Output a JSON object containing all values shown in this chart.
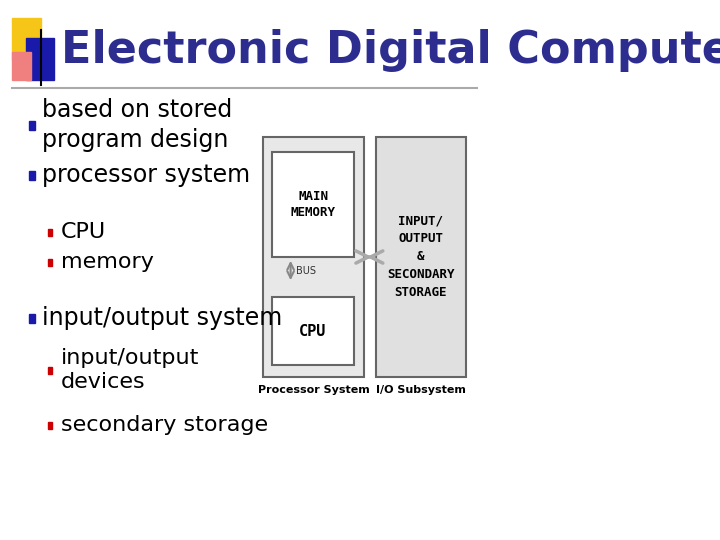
{
  "title": "Electronic Digital Computers",
  "title_color": "#2d2d8f",
  "title_fontsize": 32,
  "bg_color": "#ffffff",
  "bullet_color": "#1a1aaa",
  "subbullet_color": "#cc0000",
  "text_color": "#000000",
  "bullet_items": [
    {
      "level": 1,
      "text": "based on stored\nprogram design"
    },
    {
      "level": 1,
      "text": "processor system"
    },
    {
      "level": 2,
      "text": "CPU"
    },
    {
      "level": 2,
      "text": "memory"
    },
    {
      "level": 1,
      "text": "input/output system"
    },
    {
      "level": 2,
      "text": "input/output\ndevices"
    },
    {
      "level": 2,
      "text": "secondary storage"
    }
  ],
  "accent_colors": {
    "red": "#e05050",
    "yellow": "#f5c518",
    "blue": "#1a1aaa",
    "pink": "#f08080"
  },
  "diagram": {
    "processor_label": "Processor System",
    "io_label": "I/O Subsystem",
    "main_memory_text": "MAIN\nMEMORY",
    "cpu_text": "CPU",
    "bus_text": "BUS",
    "io_text": "INPUT/\nOUTPUT\n&\nSECONDARY\nSTORAGE",
    "outer_box_color": "#e8e8e8",
    "inner_box_color": "#ffffff",
    "io_box_color": "#e0e0e0",
    "separator_line_color": "#aaaaaa"
  },
  "y_positions": [
    415,
    365,
    308,
    278,
    222,
    170,
    115
  ],
  "fontsizes": [
    17,
    17,
    16,
    16,
    17,
    16,
    16
  ]
}
